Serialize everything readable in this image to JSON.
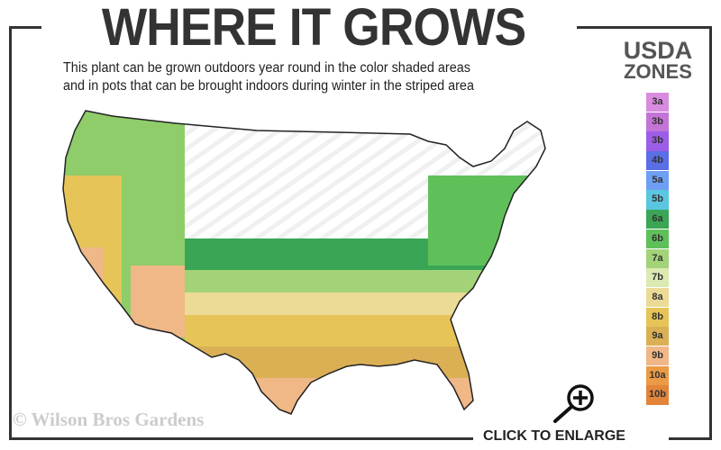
{
  "header": {
    "title": "WHERE IT GROWS",
    "subtitle_line1": "This plant can be grown outdoors year round in the color shaded areas",
    "subtitle_line2": "and in pots that can be brought indoors during winter in the striped area"
  },
  "legend": {
    "title_line1": "USDA",
    "title_line2": "ZONES",
    "zones": [
      {
        "label": "3a",
        "color": "#d98be0"
      },
      {
        "label": "3b",
        "color": "#c474d6"
      },
      {
        "label": "3b",
        "color": "#9c5ee8"
      },
      {
        "label": "4b",
        "color": "#5a6fe6"
      },
      {
        "label": "5a",
        "color": "#6f9ff2"
      },
      {
        "label": "5b",
        "color": "#5bc6df"
      },
      {
        "label": "6a",
        "color": "#3aa655"
      },
      {
        "label": "6b",
        "color": "#5fc05a"
      },
      {
        "label": "7a",
        "color": "#a3d378"
      },
      {
        "label": "7b",
        "color": "#dbeab3"
      },
      {
        "label": "8a",
        "color": "#ecdb96"
      },
      {
        "label": "8b",
        "color": "#e6c458"
      },
      {
        "label": "9a",
        "color": "#dbb055"
      },
      {
        "label": "9b",
        "color": "#f0b787"
      },
      {
        "label": "10a",
        "color": "#eb9a45"
      },
      {
        "label": "10b",
        "color": "#e2853a"
      }
    ]
  },
  "footer": {
    "copyright": "© Wilson Bros Gardens",
    "enlarge_label": "CLICK TO ENLARGE",
    "enlarge_icon": "zoom-in-icon"
  }
}
